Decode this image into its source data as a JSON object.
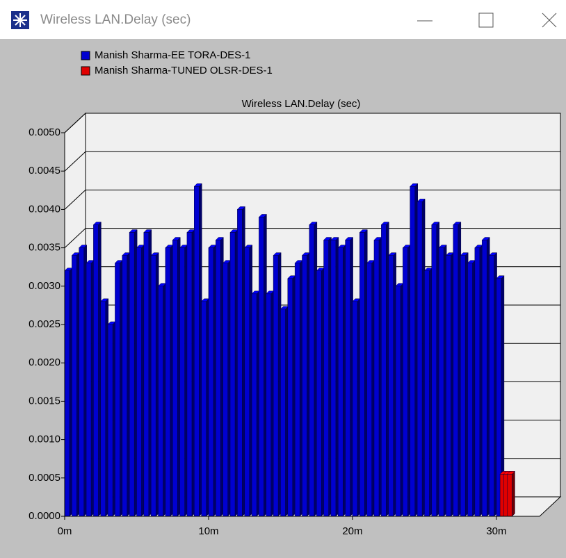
{
  "window": {
    "title": "Wireless LAN.Delay (sec)"
  },
  "chart_data": {
    "type": "bar3d",
    "title": "Wireless LAN.Delay (sec)",
    "series": [
      {
        "name": "Manish Sharma-EE TORA-DES-1",
        "color": "#0000d0",
        "x": [
          0,
          0.5,
          1,
          1.5,
          2,
          2.5,
          3,
          3.5,
          4,
          4.5,
          5,
          5.5,
          6,
          6.5,
          7,
          7.5,
          8,
          8.5,
          9,
          9.5,
          10,
          10.5,
          11,
          11.5,
          12,
          12.5,
          13,
          13.5,
          14,
          14.5,
          15,
          15.5,
          16,
          16.5,
          17,
          17.5,
          18,
          18.5,
          19,
          19.5,
          20,
          20.5,
          21,
          21.5,
          22,
          22.5,
          23,
          23.5,
          24,
          24.5,
          25,
          25.5,
          26,
          26.5,
          27,
          27.5,
          28,
          28.5,
          29,
          29.5,
          30
        ],
        "values": [
          0.0032,
          0.0034,
          0.0035,
          0.0033,
          0.0038,
          0.0028,
          0.0025,
          0.0033,
          0.0034,
          0.0037,
          0.0035,
          0.0037,
          0.0034,
          0.003,
          0.0035,
          0.0036,
          0.0035,
          0.0037,
          0.0043,
          0.0028,
          0.0035,
          0.0036,
          0.0033,
          0.0037,
          0.004,
          0.0035,
          0.0029,
          0.0039,
          0.0029,
          0.0034,
          0.0027,
          0.0031,
          0.0033,
          0.0034,
          0.0038,
          0.0032,
          0.0036,
          0.0036,
          0.0035,
          0.0036,
          0.0028,
          0.0037,
          0.0033,
          0.0036,
          0.0038,
          0.0034,
          0.003,
          0.0035,
          0.0043,
          0.0041,
          0.0032,
          0.0038,
          0.0035,
          0.0034,
          0.0038,
          0.0034,
          0.0033,
          0.0035,
          0.0036,
          0.0034,
          0.0031
        ]
      },
      {
        "name": "Manish Sharma-TUNED OLSR-DES-1",
        "color": "#e00000",
        "x": [
          30.25,
          30.5,
          30.75
        ],
        "values": [
          0.00055,
          0.00055,
          0.00055
        ]
      }
    ],
    "xlim": [
      0,
      33
    ],
    "xticks": [
      {
        "value": 0,
        "label": "0m"
      },
      {
        "value": 10,
        "label": "10m"
      },
      {
        "value": 20,
        "label": "20m"
      },
      {
        "value": 30,
        "label": "30m"
      }
    ],
    "ylim": [
      0,
      0.005
    ],
    "yticks": [
      {
        "value": 0,
        "label": "0.0000"
      },
      {
        "value": 0.0005,
        "label": "0.0005"
      },
      {
        "value": 0.001,
        "label": "0.0010"
      },
      {
        "value": 0.0015,
        "label": "0.0015"
      },
      {
        "value": 0.002,
        "label": "0.0020"
      },
      {
        "value": 0.0025,
        "label": "0.0025"
      },
      {
        "value": 0.003,
        "label": "0.0030"
      },
      {
        "value": 0.0035,
        "label": "0.0035"
      },
      {
        "value": 0.004,
        "label": "0.0040"
      },
      {
        "value": 0.0045,
        "label": "0.0045"
      },
      {
        "value": 0.005,
        "label": "0.0050"
      }
    ],
    "grid": true
  }
}
